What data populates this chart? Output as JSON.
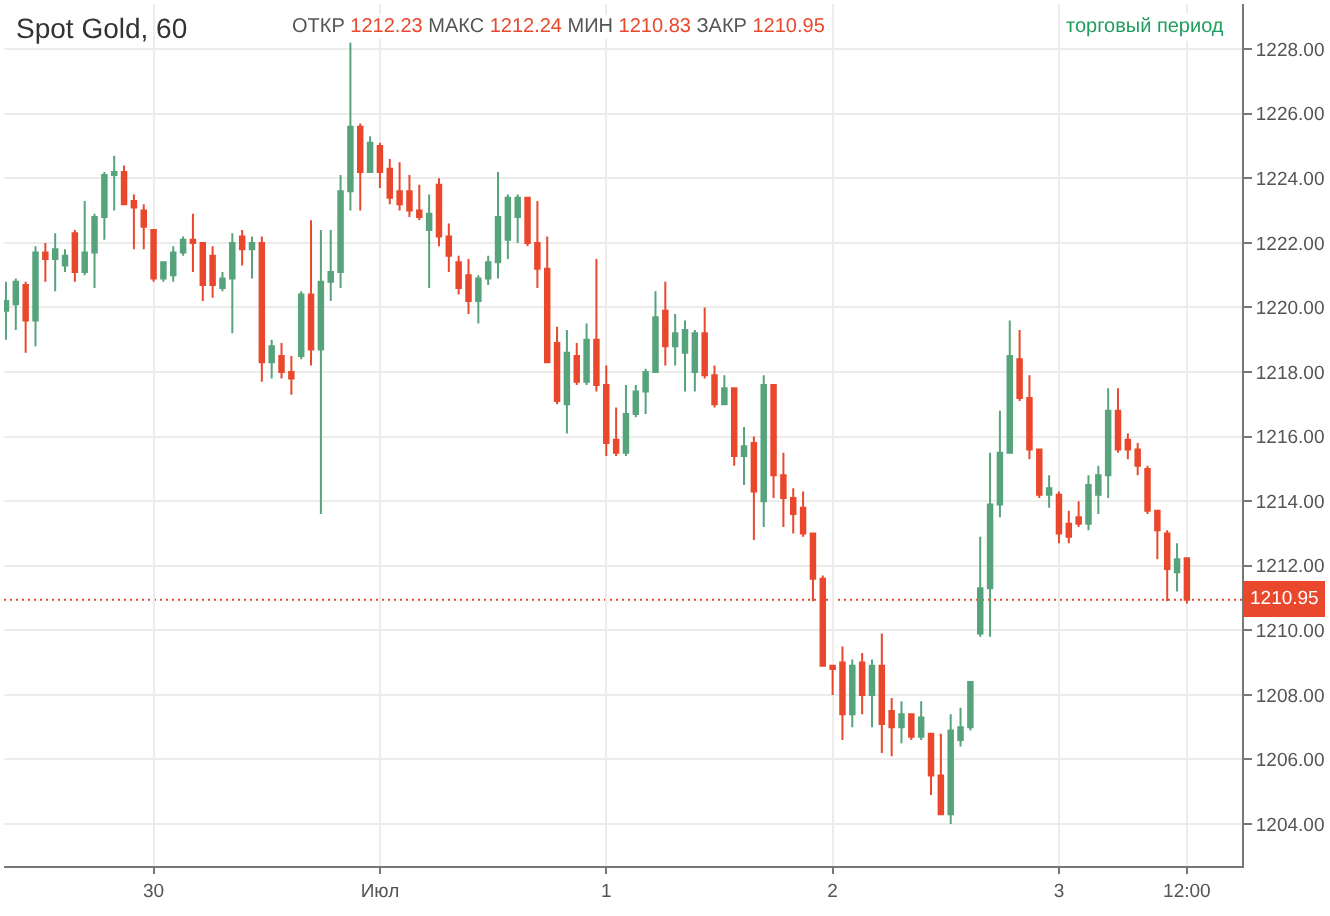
{
  "chart_data": {
    "type": "candlestick",
    "title": "Spot Gold, 60",
    "annotations": [
      "ОТКР",
      "1212.23",
      "МАКС",
      "1212.24",
      "МИН",
      "1210.83",
      "ЗАКР",
      "1210.95",
      "торговый период"
    ],
    "categories": [
      null,
      null,
      null,
      null,
      null,
      null,
      null,
      null,
      null,
      null,
      null,
      null,
      null,
      null,
      null,
      "30",
      null,
      null,
      null,
      null,
      null,
      null,
      null,
      null,
      null,
      null,
      null,
      null,
      null,
      null,
      null,
      null,
      null,
      null,
      null,
      null,
      null,
      null,
      "Июл",
      null,
      null,
      null,
      null,
      null,
      null,
      null,
      null,
      null,
      null,
      null,
      null,
      null,
      null,
      null,
      null,
      null,
      null,
      null,
      null,
      null,
      null,
      "1",
      null,
      null,
      null,
      null,
      null,
      null,
      null,
      null,
      null,
      null,
      null,
      null,
      null,
      null,
      null,
      null,
      null,
      null,
      null,
      null,
      null,
      null,
      "2",
      null,
      null,
      null,
      null,
      null,
      null,
      null,
      null,
      null,
      null,
      null,
      null,
      null,
      null,
      null,
      null,
      null,
      null,
      null,
      null,
      null,
      null,
      "3",
      null,
      null,
      null,
      null,
      null,
      null,
      null,
      null,
      null,
      null,
      null,
      null,
      "12:00"
    ],
    "ohlc": [
      [
        1219.9,
        1220.8,
        1219.0,
        1220.2
      ],
      [
        1220.1,
        1220.9,
        1219.3,
        1220.8
      ],
      [
        1220.7,
        1220.8,
        1218.6,
        1219.6
      ],
      [
        1219.6,
        1221.9,
        1218.8,
        1221.7
      ],
      [
        1221.7,
        1222.0,
        1220.8,
        1221.5
      ],
      [
        1221.5,
        1222.3,
        1220.5,
        1221.8
      ],
      [
        1221.3,
        1221.8,
        1221.1,
        1221.6
      ],
      [
        1222.3,
        1222.4,
        1220.8,
        1221.1
      ],
      [
        1221.1,
        1223.3,
        1221.0,
        1221.7
      ],
      [
        1221.7,
        1222.9,
        1220.6,
        1222.8
      ],
      [
        1222.8,
        1224.2,
        1222.1,
        1224.1
      ],
      [
        1224.1,
        1224.7,
        1223.0,
        1224.2
      ],
      [
        1224.2,
        1224.4,
        1223.2,
        1223.2
      ],
      [
        1223.3,
        1223.5,
        1221.8,
        1223.1
      ],
      [
        1223.0,
        1223.2,
        1221.8,
        1222.5
      ],
      [
        1222.4,
        1222.4,
        1220.8,
        1220.9
      ],
      [
        1220.9,
        1221.4,
        1220.8,
        1221.4
      ],
      [
        1221.0,
        1221.9,
        1220.8,
        1221.7
      ],
      [
        1221.7,
        1222.2,
        1221.6,
        1222.1
      ],
      [
        1222.1,
        1222.9,
        1221.1,
        1222.0
      ],
      [
        1222.0,
        1222.0,
        1220.2,
        1220.7
      ],
      [
        1221.6,
        1221.9,
        1220.3,
        1220.7
      ],
      [
        1220.6,
        1221.1,
        1220.5,
        1220.9
      ],
      [
        1220.9,
        1222.3,
        1219.2,
        1222.0
      ],
      [
        1222.2,
        1222.4,
        1221.3,
        1221.8
      ],
      [
        1221.8,
        1222.2,
        1220.9,
        1222.0
      ],
      [
        1222.0,
        1222.2,
        1217.7,
        1218.3
      ],
      [
        1218.3,
        1219.0,
        1217.8,
        1218.8
      ],
      [
        1218.5,
        1218.9,
        1217.8,
        1218.0
      ],
      [
        1218.0,
        1218.5,
        1217.3,
        1217.8
      ],
      [
        1218.5,
        1220.5,
        1218.4,
        1220.4
      ],
      [
        1220.4,
        1222.7,
        1218.2,
        1218.7
      ],
      [
        1218.7,
        1222.4,
        1213.6,
        1220.8
      ],
      [
        1220.8,
        1222.4,
        1220.2,
        1221.1
      ],
      [
        1221.1,
        1224.1,
        1220.6,
        1223.6
      ],
      [
        1223.6,
        1228.2,
        1223.0,
        1225.6
      ],
      [
        1225.6,
        1225.7,
        1223.0,
        1224.2
      ],
      [
        1224.2,
        1225.3,
        1224.2,
        1225.1
      ],
      [
        1225.0,
        1225.1,
        1223.7,
        1224.2
      ],
      [
        1224.3,
        1224.6,
        1223.2,
        1223.4
      ],
      [
        1223.6,
        1224.5,
        1223.0,
        1223.2
      ],
      [
        1223.6,
        1224.1,
        1222.8,
        1223.0
      ],
      [
        1223.0,
        1223.8,
        1222.7,
        1222.8
      ],
      [
        1222.4,
        1223.5,
        1220.6,
        1222.9
      ],
      [
        1223.8,
        1224.0,
        1221.9,
        1222.2
      ],
      [
        1222.2,
        1222.6,
        1221.1,
        1221.6
      ],
      [
        1221.4,
        1221.6,
        1220.4,
        1220.6
      ],
      [
        1221.0,
        1221.5,
        1219.8,
        1220.2
      ],
      [
        1220.2,
        1221.0,
        1219.5,
        1220.9
      ],
      [
        1220.9,
        1221.6,
        1220.7,
        1221.4
      ],
      [
        1221.4,
        1224.2,
        1220.9,
        1222.8
      ],
      [
        1222.1,
        1223.5,
        1221.5,
        1223.4
      ],
      [
        1222.8,
        1223.5,
        1222.0,
        1223.4
      ],
      [
        1223.4,
        1223.4,
        1221.9,
        1222.0
      ],
      [
        1222.0,
        1223.3,
        1220.6,
        1221.2
      ],
      [
        1221.2,
        1222.2,
        1218.3,
        1218.3
      ],
      [
        1218.9,
        1219.4,
        1217.0,
        1217.1
      ],
      [
        1217.0,
        1219.3,
        1216.1,
        1218.6
      ],
      [
        1218.5,
        1218.9,
        1217.6,
        1217.7
      ],
      [
        1217.7,
        1219.5,
        1217.6,
        1219.0
      ],
      [
        1219.0,
        1221.5,
        1217.4,
        1217.6
      ],
      [
        1217.6,
        1218.2,
        1215.4,
        1215.8
      ],
      [
        1215.9,
        1216.9,
        1215.4,
        1215.5
      ],
      [
        1215.5,
        1217.6,
        1215.4,
        1216.7
      ],
      [
        1216.7,
        1217.6,
        1216.6,
        1217.4
      ],
      [
        1217.4,
        1218.1,
        1216.7,
        1218.0
      ],
      [
        1218.0,
        1220.5,
        1218.0,
        1219.7
      ],
      [
        1219.9,
        1220.8,
        1218.2,
        1218.8
      ],
      [
        1218.8,
        1219.8,
        1218.2,
        1219.2
      ],
      [
        1218.6,
        1219.6,
        1217.4,
        1219.3
      ],
      [
        1218.0,
        1219.3,
        1217.4,
        1219.2
      ],
      [
        1219.2,
        1220.0,
        1217.8,
        1217.9
      ],
      [
        1217.9,
        1218.2,
        1216.9,
        1217.0
      ],
      [
        1217.0,
        1217.9,
        1217.0,
        1217.5
      ],
      [
        1217.5,
        1217.5,
        1215.1,
        1215.4
      ],
      [
        1215.4,
        1216.3,
        1214.5,
        1215.7
      ],
      [
        1215.8,
        1216.0,
        1212.8,
        1214.3
      ],
      [
        1214.0,
        1217.9,
        1213.2,
        1217.6
      ],
      [
        1217.6,
        1217.6,
        1214.1,
        1214.8
      ],
      [
        1214.8,
        1215.5,
        1213.2,
        1214.1
      ],
      [
        1214.1,
        1214.4,
        1213.0,
        1213.6
      ],
      [
        1213.8,
        1214.3,
        1212.9,
        1213.0
      ],
      [
        1213.0,
        1213.0,
        1210.9,
        1211.6
      ],
      [
        1211.6,
        1211.7,
        1208.9,
        1208.9
      ],
      [
        1208.9,
        1208.9,
        1208.0,
        1208.8
      ],
      [
        1209.0,
        1209.5,
        1206.6,
        1207.4
      ],
      [
        1207.4,
        1209.1,
        1207.0,
        1208.9
      ],
      [
        1209.0,
        1209.3,
        1207.4,
        1208.0
      ],
      [
        1208.0,
        1209.1,
        1207.0,
        1208.9
      ],
      [
        1208.9,
        1209.9,
        1206.2,
        1207.1
      ],
      [
        1207.5,
        1207.9,
        1206.1,
        1207.0
      ],
      [
        1207.0,
        1207.8,
        1206.5,
        1207.4
      ],
      [
        1207.4,
        1207.4,
        1206.6,
        1206.7
      ],
      [
        1206.7,
        1207.8,
        1206.6,
        1207.3
      ],
      [
        1206.8,
        1206.8,
        1204.9,
        1205.5
      ],
      [
        1205.5,
        1206.8,
        1204.3,
        1204.3
      ],
      [
        1204.3,
        1207.4,
        1204.0,
        1206.9
      ],
      [
        1206.6,
        1207.6,
        1206.4,
        1207.0
      ],
      [
        1207.0,
        1208.4,
        1206.9,
        1208.4
      ],
      [
        1209.9,
        1212.9,
        1209.8,
        1211.3
      ],
      [
        1211.3,
        1215.5,
        1209.8,
        1213.9
      ],
      [
        1213.9,
        1216.8,
        1213.5,
        1215.5
      ],
      [
        1215.5,
        1219.6,
        1215.5,
        1218.5
      ],
      [
        1218.4,
        1219.3,
        1217.1,
        1217.2
      ],
      [
        1217.2,
        1217.9,
        1215.3,
        1215.6
      ],
      [
        1215.6,
        1215.6,
        1214.1,
        1214.2
      ],
      [
        1214.2,
        1214.8,
        1213.8,
        1214.4
      ],
      [
        1214.2,
        1214.3,
        1212.7,
        1213.0
      ],
      [
        1213.3,
        1213.7,
        1212.7,
        1212.9
      ],
      [
        1213.5,
        1214.0,
        1213.2,
        1213.3
      ],
      [
        1213.3,
        1214.8,
        1213.1,
        1214.5
      ],
      [
        1214.2,
        1215.1,
        1213.6,
        1214.8
      ],
      [
        1214.8,
        1217.5,
        1214.1,
        1216.8
      ],
      [
        1216.8,
        1217.5,
        1215.5,
        1215.6
      ],
      [
        1215.9,
        1216.1,
        1215.3,
        1215.6
      ],
      [
        1215.6,
        1215.8,
        1214.8,
        1215.1
      ],
      [
        1215.0,
        1215.1,
        1213.6,
        1213.7
      ],
      [
        1213.7,
        1213.7,
        1212.2,
        1213.1
      ],
      [
        1213.0,
        1213.1,
        1210.9,
        1211.9
      ],
      [
        1211.8,
        1212.7,
        1211.2,
        1212.2
      ],
      [
        1212.23,
        1212.24,
        1210.83,
        1210.95
      ]
    ],
    "colors": [
      "#56a37c",
      "#56a37c",
      "#e9482c",
      "#56a37c",
      "#e9482c",
      "#56a37c",
      "#56a37c",
      "#e9482c",
      "#56a37c",
      "#56a37c",
      "#56a37c",
      "#56a37c",
      "#e9482c",
      "#e9482c",
      "#e9482c",
      "#e9482c",
      "#56a37c",
      "#56a37c",
      "#56a37c",
      "#e9482c",
      "#e9482c",
      "#e9482c",
      "#56a37c",
      "#56a37c",
      "#e9482c",
      "#56a37c",
      "#e9482c",
      "#56a37c",
      "#e9482c",
      "#e9482c",
      "#56a37c",
      "#e9482c",
      "#56a37c",
      "#56a37c",
      "#56a37c",
      "#56a37c",
      "#e9482c",
      "#56a37c",
      "#e9482c",
      "#e9482c",
      "#e9482c",
      "#e9482c",
      "#e9482c",
      "#56a37c",
      "#e9482c",
      "#e9482c",
      "#e9482c",
      "#e9482c",
      "#56a37c",
      "#56a37c",
      "#56a37c",
      "#56a37c",
      "#56a37c",
      "#e9482c",
      "#e9482c",
      "#e9482c",
      "#e9482c",
      "#56a37c",
      "#e9482c",
      "#56a37c",
      "#e9482c",
      "#e9482c",
      "#e9482c",
      "#56a37c",
      "#56a37c",
      "#56a37c",
      "#56a37c",
      "#e9482c",
      "#56a37c",
      "#56a37c",
      "#56a37c",
      "#e9482c",
      "#e9482c",
      "#56a37c",
      "#e9482c",
      "#56a37c",
      "#e9482c",
      "#56a37c",
      "#e9482c",
      "#e9482c",
      "#e9482c",
      "#e9482c",
      "#e9482c",
      "#e9482c",
      "#e9482c",
      "#e9482c",
      "#56a37c",
      "#e9482c",
      "#56a37c",
      "#e9482c",
      "#e9482c",
      "#56a37c",
      "#e9482c",
      "#56a37c",
      "#e9482c",
      "#e9482c",
      "#56a37c",
      "#56a37c",
      "#56a37c",
      "#56a37c",
      "#56a37c",
      "#56a37c",
      "#56a37c",
      "#e9482c",
      "#e9482c",
      "#e9482c",
      "#56a37c",
      "#e9482c",
      "#e9482c",
      "#e9482c",
      "#56a37c",
      "#56a37c",
      "#56a37c",
      "#e9482c",
      "#e9482c",
      "#e9482c",
      "#e9482c",
      "#e9482c",
      "#e9482c",
      "#56a37c",
      "#e9482c"
    ],
    "ylim": [
      1202.7,
      1229.4
    ],
    "yticks": [
      {
        "value": 1204,
        "label": "1204.00"
      },
      {
        "value": 1206,
        "label": "1206.00"
      },
      {
        "value": 1208,
        "label": "1208.00"
      },
      {
        "value": 1210,
        "label": "1210.00"
      },
      {
        "value": 1212,
        "label": "1212.00"
      },
      {
        "value": 1214,
        "label": "1214.00"
      },
      {
        "value": 1216,
        "label": "1216.00"
      },
      {
        "value": 1218,
        "label": "1218.00"
      },
      {
        "value": 1220,
        "label": "1220.00"
      },
      {
        "value": 1222,
        "label": "1222.00"
      },
      {
        "value": 1224,
        "label": "1224.00"
      },
      {
        "value": 1226,
        "label": "1226.00"
      },
      {
        "value": 1228,
        "label": "1228.00"
      }
    ],
    "ref_lines": [
      {
        "axis": "y",
        "value": 1210.95,
        "label": "1210.95",
        "color": "#e9482c",
        "line_style": "dotted"
      }
    ],
    "grid": true
  }
}
